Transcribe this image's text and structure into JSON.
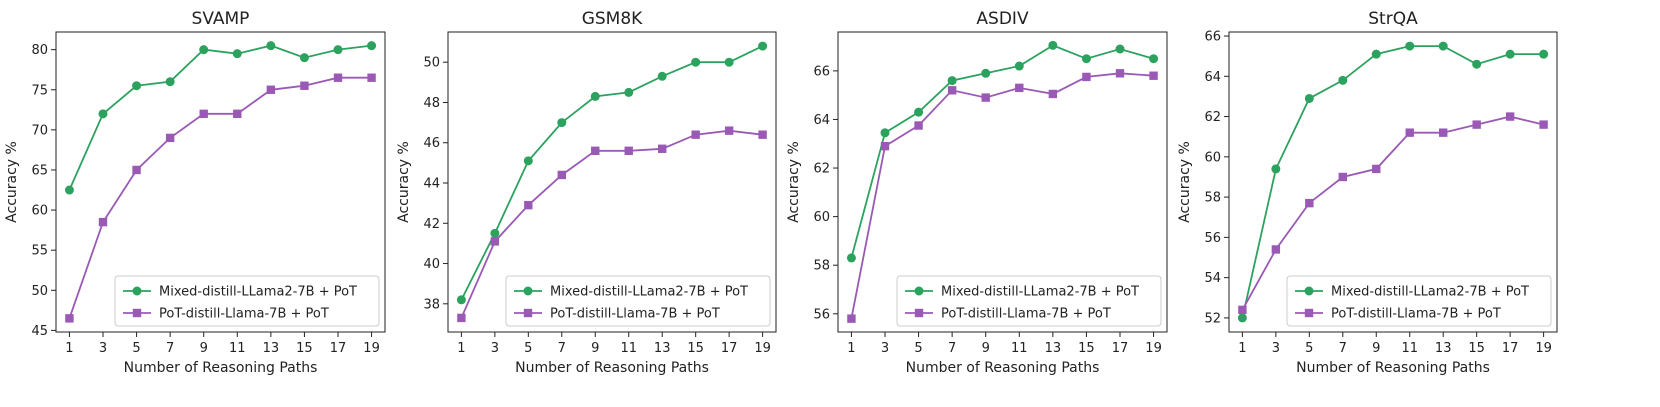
{
  "chart_data": [
    {
      "type": "line",
      "title": "SVAMP",
      "xlabel": "Number of Reasoning Paths",
      "ylabel": "Accuracy %",
      "x": [
        1,
        3,
        5,
        7,
        9,
        11,
        13,
        15,
        17,
        19
      ],
      "xlim": [
        0.2,
        19.8
      ],
      "ylim": [
        44.8,
        82.2
      ],
      "yticks": [
        45,
        50,
        55,
        60,
        65,
        70,
        75,
        80
      ],
      "legend_position": "lower-right",
      "series": [
        {
          "name": "Mixed-distill-LLama2-7B + PoT",
          "color": "#2ca25f",
          "marker": "circle",
          "values": [
            62.5,
            72.0,
            75.5,
            76.0,
            80.0,
            79.5,
            80.5,
            79.0,
            80.0,
            80.5
          ]
        },
        {
          "name": "PoT-distill-Llama-7B + PoT",
          "color": "#9b59b6",
          "marker": "square",
          "values": [
            46.5,
            58.5,
            65.0,
            69.0,
            72.0,
            72.0,
            75.0,
            75.5,
            76.5,
            76.5
          ]
        }
      ]
    },
    {
      "type": "line",
      "title": "GSM8K",
      "xlabel": "Number of Reasoning Paths",
      "ylabel": "Accuracy %",
      "x": [
        1,
        3,
        5,
        7,
        9,
        11,
        13,
        15,
        17,
        19
      ],
      "xlim": [
        0.2,
        19.8
      ],
      "ylim": [
        36.6,
        51.5
      ],
      "yticks": [
        38,
        40,
        42,
        44,
        46,
        48,
        50
      ],
      "legend_position": "lower-right",
      "series": [
        {
          "name": "Mixed-distill-LLama2-7B + PoT",
          "color": "#2ca25f",
          "marker": "circle",
          "values": [
            38.2,
            41.5,
            45.1,
            47.0,
            48.3,
            48.5,
            49.3,
            50.0,
            50.0,
            50.8
          ]
        },
        {
          "name": "PoT-distill-Llama-7B + PoT",
          "color": "#9b59b6",
          "marker": "square",
          "values": [
            37.3,
            41.1,
            42.9,
            44.4,
            45.6,
            45.6,
            45.7,
            46.4,
            46.6,
            46.4
          ]
        }
      ]
    },
    {
      "type": "line",
      "title": "ASDIV",
      "xlabel": "Number of Reasoning Paths",
      "ylabel": "Accuracy %",
      "x": [
        1,
        3,
        5,
        7,
        9,
        11,
        13,
        15,
        17,
        19
      ],
      "xlim": [
        0.2,
        19.8
      ],
      "ylim": [
        55.25,
        67.6
      ],
      "yticks": [
        56,
        58,
        60,
        62,
        64,
        66
      ],
      "legend_position": "lower-right",
      "series": [
        {
          "name": "Mixed-distill-LLama2-7B + PoT",
          "color": "#2ca25f",
          "marker": "circle",
          "values": [
            58.3,
            63.45,
            64.3,
            65.6,
            65.9,
            66.2,
            67.05,
            66.5,
            66.9,
            66.5
          ]
        },
        {
          "name": "PoT-distill-Llama-7B + PoT",
          "color": "#9b59b6",
          "marker": "square",
          "values": [
            55.8,
            62.9,
            63.75,
            65.2,
            64.9,
            65.3,
            65.05,
            65.75,
            65.9,
            65.8
          ]
        }
      ]
    },
    {
      "type": "line",
      "title": "StrQA",
      "xlabel": "Number of Reasoning Paths",
      "ylabel": "Accuracy %",
      "x": [
        1,
        3,
        5,
        7,
        9,
        11,
        13,
        15,
        17,
        19
      ],
      "xlim": [
        0.2,
        19.8
      ],
      "ylim": [
        51.3,
        66.2
      ],
      "yticks": [
        52,
        54,
        56,
        58,
        60,
        62,
        64,
        66
      ],
      "legend_position": "lower-right",
      "series": [
        {
          "name": "Mixed-distill-LLama2-7B + PoT",
          "color": "#2ca25f",
          "marker": "circle",
          "values": [
            52.0,
            59.4,
            62.9,
            63.8,
            65.1,
            65.5,
            65.5,
            64.6,
            65.1,
            65.1
          ]
        },
        {
          "name": "PoT-distill-Llama-7B + PoT",
          "color": "#9b59b6",
          "marker": "square",
          "values": [
            52.4,
            55.4,
            57.7,
            59.0,
            59.4,
            61.2,
            61.2,
            61.6,
            62.0,
            61.6
          ]
        }
      ]
    }
  ]
}
